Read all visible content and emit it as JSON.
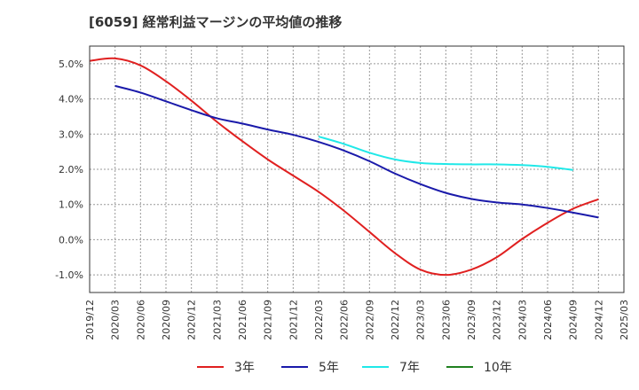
{
  "chart_data": {
    "type": "line",
    "title": "[6059]  経常利益マージンの平均値の推移",
    "ylim": [
      -1.5,
      5.5
    ],
    "yticks": [
      5,
      4,
      3,
      2,
      1,
      0,
      -1
    ],
    "ytick_labels": [
      "5.0%",
      "4.0%",
      "3.0%",
      "2.0%",
      "1.0%",
      "0.0%",
      "-1.0%"
    ],
    "x_categories": [
      "2019/12",
      "2020/03",
      "2020/06",
      "2020/09",
      "2020/12",
      "2021/03",
      "2021/06",
      "2021/09",
      "2021/12",
      "2022/03",
      "2022/06",
      "2022/09",
      "2022/12",
      "2023/03",
      "2023/06",
      "2023/09",
      "2023/12",
      "2024/03",
      "2024/06",
      "2024/09",
      "2024/12",
      "2025/03"
    ],
    "grid": true,
    "legend_position": "bottom",
    "series": [
      {
        "name": "3年",
        "color": "#e02020",
        "start_index": 0,
        "values": [
          5.08,
          5.15,
          4.95,
          4.5,
          3.95,
          3.35,
          2.8,
          2.28,
          1.82,
          1.36,
          0.82,
          0.22,
          -0.38,
          -0.85,
          -1.0,
          -0.85,
          -0.5,
          0.02,
          0.48,
          0.88,
          1.15
        ]
      },
      {
        "name": "5年",
        "color": "#1a1aaa",
        "start_index": 1,
        "values": [
          4.37,
          4.18,
          3.93,
          3.68,
          3.45,
          3.3,
          3.13,
          2.98,
          2.78,
          2.53,
          2.23,
          1.88,
          1.58,
          1.33,
          1.16,
          1.06,
          1.0,
          0.9,
          0.77,
          0.63
        ]
      },
      {
        "name": "7年",
        "color": "#20e8e8",
        "start_index": 9,
        "values": [
          2.93,
          2.72,
          2.47,
          2.28,
          2.18,
          2.15,
          2.14,
          2.14,
          2.12,
          2.07,
          1.98
        ]
      },
      {
        "name": "10年",
        "color": "#208020",
        "start_index": 0,
        "values": []
      }
    ]
  }
}
